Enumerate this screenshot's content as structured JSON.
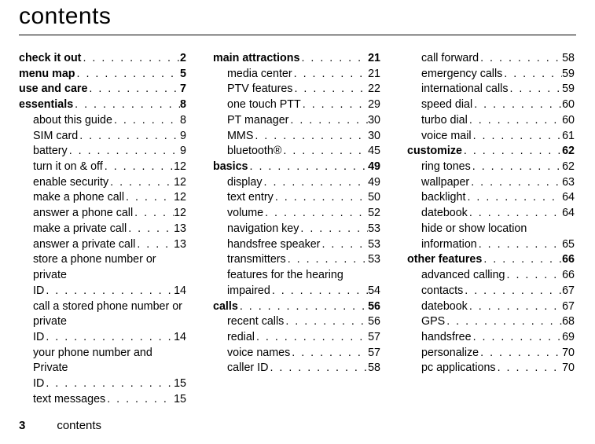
{
  "title": "contents",
  "footer": {
    "page": "3",
    "label": "contents"
  },
  "columns": [
    [
      {
        "label": "check it out",
        "page": "2",
        "bold": true,
        "sub": false
      },
      {
        "label": "menu map",
        "page": "5",
        "bold": true,
        "sub": false
      },
      {
        "label": "use and care",
        "page": "7",
        "bold": true,
        "sub": false
      },
      {
        "label": "essentials",
        "page": "8",
        "bold": true,
        "sub": false
      },
      {
        "label": "about this guide",
        "page": "8",
        "bold": false,
        "sub": true
      },
      {
        "label": "SIM card",
        "page": "9",
        "bold": false,
        "sub": true
      },
      {
        "label": "battery",
        "page": "9",
        "bold": false,
        "sub": true
      },
      {
        "label": "turn it on & off",
        "page": "12",
        "bold": false,
        "sub": true
      },
      {
        "label": "enable security",
        "page": "12",
        "bold": false,
        "sub": true
      },
      {
        "label": "make a phone call",
        "page": "12",
        "bold": false,
        "sub": true
      },
      {
        "label": "answer a phone call",
        "page": "12",
        "bold": false,
        "sub": true
      },
      {
        "label": "make a private call",
        "page": "13",
        "bold": false,
        "sub": true
      },
      {
        "label": "answer a private call",
        "page": "13",
        "bold": false,
        "sub": true
      },
      {
        "label": "store a phone number or private ID",
        "page": "14",
        "bold": false,
        "sub": true,
        "wrap": true
      },
      {
        "label": "call a stored phone number or private ID",
        "page": "14",
        "bold": false,
        "sub": true,
        "wrap": true
      },
      {
        "label": "your phone number and Private ID",
        "page": "15",
        "bold": false,
        "sub": true,
        "wrap": true
      },
      {
        "label": "text messages",
        "page": "15",
        "bold": false,
        "sub": true
      }
    ],
    [
      {
        "label": "main attractions",
        "page": "21",
        "bold": true,
        "sub": false
      },
      {
        "label": "media center",
        "page": "21",
        "bold": false,
        "sub": true
      },
      {
        "label": "PTV features",
        "page": "22",
        "bold": false,
        "sub": true
      },
      {
        "label": "one touch PTT",
        "page": "29",
        "bold": false,
        "sub": true
      },
      {
        "label": "PT manager",
        "page": "30",
        "bold": false,
        "sub": true
      },
      {
        "label": "MMS",
        "page": "30",
        "bold": false,
        "sub": true
      },
      {
        "label": "bluetooth®",
        "page": "45",
        "bold": false,
        "sub": true
      },
      {
        "label": "basics",
        "page": "49",
        "bold": true,
        "sub": false
      },
      {
        "label": "display",
        "page": "49",
        "bold": false,
        "sub": true
      },
      {
        "label": "text entry",
        "page": "50",
        "bold": false,
        "sub": true
      },
      {
        "label": "volume",
        "page": "52",
        "bold": false,
        "sub": true
      },
      {
        "label": "navigation key",
        "page": "53",
        "bold": false,
        "sub": true
      },
      {
        "label": "handsfree speaker",
        "page": "53",
        "bold": false,
        "sub": true
      },
      {
        "label": "transmitters",
        "page": "53",
        "bold": false,
        "sub": true
      },
      {
        "label": "features for the hearing impaired",
        "page": "54",
        "bold": false,
        "sub": true,
        "wrap": true
      },
      {
        "label": "calls",
        "page": "56",
        "bold": true,
        "sub": false
      },
      {
        "label": "recent calls",
        "page": "56",
        "bold": false,
        "sub": true
      },
      {
        "label": "redial",
        "page": "57",
        "bold": false,
        "sub": true
      },
      {
        "label": "voice names",
        "page": "57",
        "bold": false,
        "sub": true
      },
      {
        "label": "caller ID",
        "page": "58",
        "bold": false,
        "sub": true
      }
    ],
    [
      {
        "label": "call forward",
        "page": "58",
        "bold": false,
        "sub": true
      },
      {
        "label": "emergency calls",
        "page": "59",
        "bold": false,
        "sub": true
      },
      {
        "label": "international calls",
        "page": "59",
        "bold": false,
        "sub": true
      },
      {
        "label": "speed dial",
        "page": "60",
        "bold": false,
        "sub": true
      },
      {
        "label": "turbo dial",
        "page": "60",
        "bold": false,
        "sub": true
      },
      {
        "label": "voice mail",
        "page": "61",
        "bold": false,
        "sub": true
      },
      {
        "label": "customize",
        "page": "62",
        "bold": true,
        "sub": false
      },
      {
        "label": "ring tones",
        "page": "62",
        "bold": false,
        "sub": true
      },
      {
        "label": "wallpaper",
        "page": "63",
        "bold": false,
        "sub": true
      },
      {
        "label": "backlight",
        "page": "64",
        "bold": false,
        "sub": true
      },
      {
        "label": "datebook",
        "page": "64",
        "bold": false,
        "sub": true
      },
      {
        "label": "hide or show location information",
        "page": "65",
        "bold": false,
        "sub": true,
        "wrap": true
      },
      {
        "label": "other features",
        "page": "66",
        "bold": true,
        "sub": false
      },
      {
        "label": "advanced calling",
        "page": "66",
        "bold": false,
        "sub": true
      },
      {
        "label": "contacts",
        "page": "67",
        "bold": false,
        "sub": true
      },
      {
        "label": "datebook",
        "page": "67",
        "bold": false,
        "sub": true
      },
      {
        "label": "GPS",
        "page": "68",
        "bold": false,
        "sub": true
      },
      {
        "label": "handsfree",
        "page": "69",
        "bold": false,
        "sub": true
      },
      {
        "label": "personalize",
        "page": "70",
        "bold": false,
        "sub": true
      },
      {
        "label": "pc applications",
        "page": "70",
        "bold": false,
        "sub": true
      }
    ]
  ]
}
